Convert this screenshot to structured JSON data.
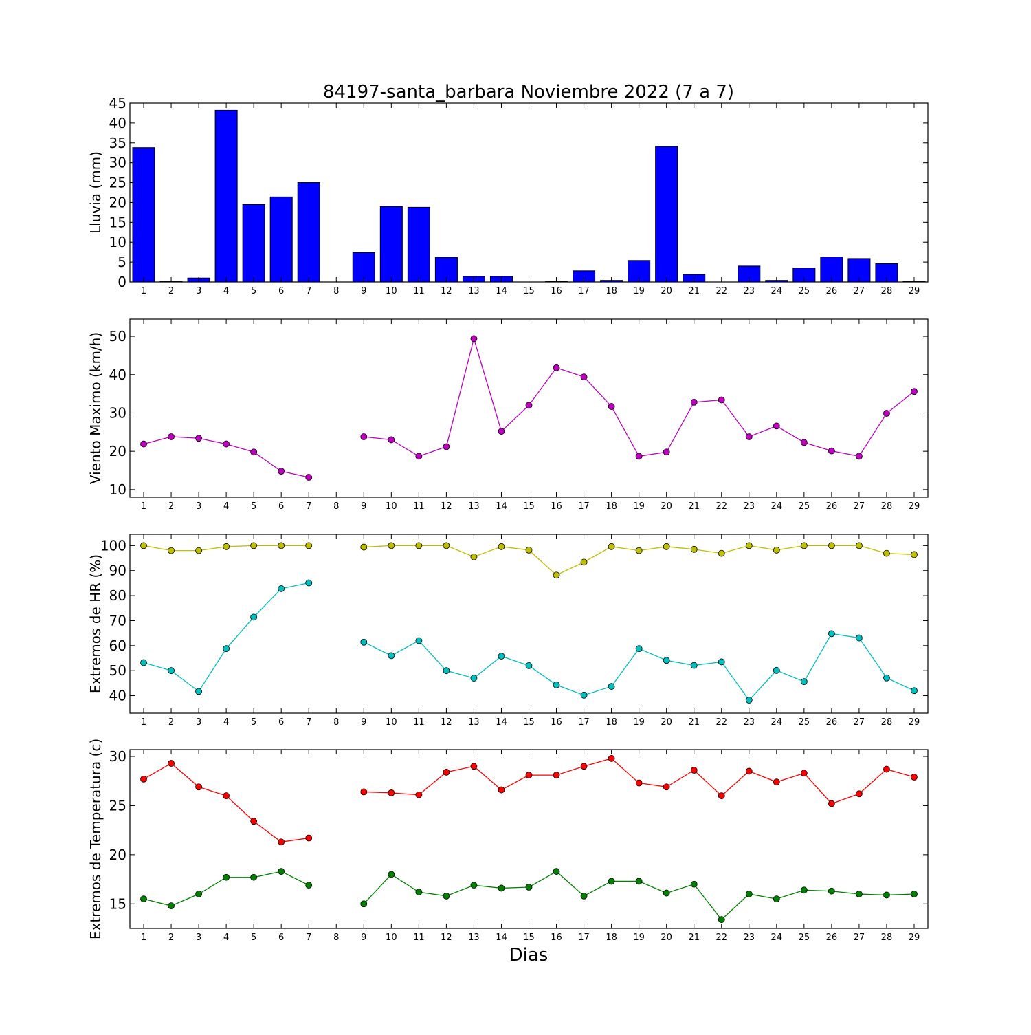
{
  "title": "84197-santa_barbara Noviembre 2022  (7 a 7)",
  "xlabel": "Dias",
  "colors": {
    "rain": "#0000ff",
    "wind": "#bf00bf",
    "hr_max": "#bfbf00",
    "hr_min": "#00bfbf",
    "temp_max": "#ff0000",
    "temp_min": "#008000"
  },
  "chart_data": [
    {
      "type": "bar",
      "ylabel": "Lluvia (mm)",
      "ylim": [
        0,
        45
      ],
      "yticks": [
        0,
        5,
        10,
        15,
        20,
        25,
        30,
        35,
        40,
        45
      ],
      "x": [
        1,
        2,
        3,
        4,
        5,
        6,
        7,
        8,
        9,
        10,
        11,
        12,
        13,
        14,
        15,
        16,
        17,
        18,
        19,
        20,
        21,
        22,
        23,
        24,
        25,
        26,
        27,
        28,
        29
      ],
      "series": [
        {
          "color": "#0000ff",
          "values": [
            33.8,
            0.2,
            1.0,
            43.2,
            19.5,
            21.4,
            25.0,
            0,
            7.4,
            19.0,
            18.8,
            6.2,
            1.4,
            1.4,
            0,
            0.1,
            2.8,
            0.4,
            5.4,
            34.1,
            1.9,
            0,
            4.0,
            0.4,
            3.5,
            6.3,
            5.9,
            4.6,
            0.2
          ]
        }
      ]
    },
    {
      "type": "line",
      "ylabel": "Viento Maximo (km/h)",
      "ylim": [
        8,
        54.5
      ],
      "yticks": [
        10,
        20,
        30,
        40,
        50
      ],
      "x": [
        1,
        2,
        3,
        4,
        5,
        6,
        7,
        8,
        9,
        10,
        11,
        12,
        13,
        14,
        15,
        16,
        17,
        18,
        19,
        20,
        21,
        22,
        23,
        24,
        25,
        26,
        27,
        28,
        29
      ],
      "series": [
        {
          "color": "#bf00bf",
          "values": [
            21.9,
            23.8,
            23.4,
            21.9,
            19.8,
            14.8,
            13.2,
            null,
            23.8,
            23.0,
            18.7,
            21.2,
            49.4,
            25.2,
            32.0,
            41.8,
            39.4,
            31.7,
            18.7,
            19.8,
            32.8,
            33.4,
            23.8,
            26.6,
            22.3,
            20.1,
            18.7,
            29.9,
            35.6
          ]
        }
      ]
    },
    {
      "type": "line",
      "ylabel": "Extremos de HR (%)",
      "ylim": [
        33,
        104.5
      ],
      "yticks": [
        40,
        50,
        60,
        70,
        80,
        90,
        100
      ],
      "x": [
        1,
        2,
        3,
        4,
        5,
        6,
        7,
        8,
        9,
        10,
        11,
        12,
        13,
        14,
        15,
        16,
        17,
        18,
        19,
        20,
        21,
        22,
        23,
        24,
        25,
        26,
        27,
        28,
        29
      ],
      "series": [
        {
          "color": "#bfbf00",
          "values": [
            100,
            98,
            98,
            99.6,
            100,
            100,
            100,
            null,
            99.4,
            100,
            100,
            100,
            95.5,
            99.6,
            98.2,
            88.2,
            93.4,
            99.6,
            98,
            99.6,
            98.5,
            96.9,
            100,
            98.2,
            100,
            100,
            100,
            96.9,
            96.4
          ]
        },
        {
          "color": "#00bfbf",
          "values": [
            53.2,
            50,
            41.7,
            58.8,
            71.4,
            82.8,
            85.1,
            null,
            61.4,
            56,
            62,
            50,
            47,
            55.8,
            52,
            44.3,
            40.2,
            43.7,
            58.8,
            54.1,
            52.1,
            53.5,
            38.2,
            50.1,
            45.6,
            64.8,
            63.1,
            47.1,
            42
          ]
        }
      ]
    },
    {
      "type": "line",
      "ylabel": "Extremos de Temperatura (c)",
      "ylim": [
        12.5,
        30.7
      ],
      "yticks": [
        15,
        20,
        25,
        30
      ],
      "x": [
        1,
        2,
        3,
        4,
        5,
        6,
        7,
        8,
        9,
        10,
        11,
        12,
        13,
        14,
        15,
        16,
        17,
        18,
        19,
        20,
        21,
        22,
        23,
        24,
        25,
        26,
        27,
        28,
        29
      ],
      "series": [
        {
          "color": "#ff0000",
          "values": [
            27.7,
            29.3,
            26.9,
            26.0,
            23.4,
            21.3,
            21.7,
            null,
            26.4,
            26.3,
            26.1,
            28.4,
            29.0,
            26.6,
            28.1,
            28.1,
            29.0,
            29.8,
            27.3,
            26.9,
            28.6,
            26.0,
            28.5,
            27.4,
            28.3,
            25.2,
            26.2,
            28.7,
            27.9
          ]
        },
        {
          "color": "#008000",
          "values": [
            15.5,
            14.8,
            16.0,
            17.7,
            17.7,
            18.3,
            16.9,
            null,
            15.0,
            18.0,
            16.2,
            15.8,
            16.9,
            16.6,
            16.7,
            18.3,
            15.8,
            17.3,
            17.3,
            16.1,
            17.0,
            13.4,
            16.0,
            15.5,
            16.4,
            16.3,
            16.0,
            15.9,
            16.0
          ]
        }
      ]
    }
  ]
}
